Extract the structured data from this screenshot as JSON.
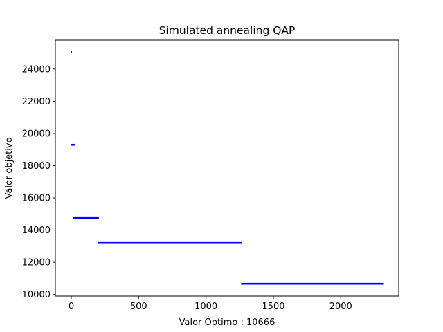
{
  "chart_data": {
    "type": "scatter",
    "title": "Simulated annealing QAP",
    "xlabel": "Valor Óptimo : 10666",
    "ylabel": "Valor objetivo",
    "xlim": [
      -118,
      2430
    ],
    "ylim": [
      9900,
      25800
    ],
    "xticks": [
      0,
      500,
      1000,
      1500,
      2000
    ],
    "yticks": [
      10000,
      12000,
      14000,
      16000,
      18000,
      20000,
      22000,
      24000
    ],
    "series": [
      {
        "name": "objective",
        "color": "#0000ff",
        "segments": [
          {
            "x_start": 0,
            "x_end": 5,
            "y": 25050
          },
          {
            "x_start": 0,
            "x_end": 25,
            "y": 19300
          },
          {
            "x_start": 15,
            "x_end": 205,
            "y": 14750
          },
          {
            "x_start": 200,
            "x_end": 1265,
            "y": 13200
          },
          {
            "x_start": 1260,
            "x_end": 2320,
            "y": 10666
          }
        ]
      }
    ]
  }
}
